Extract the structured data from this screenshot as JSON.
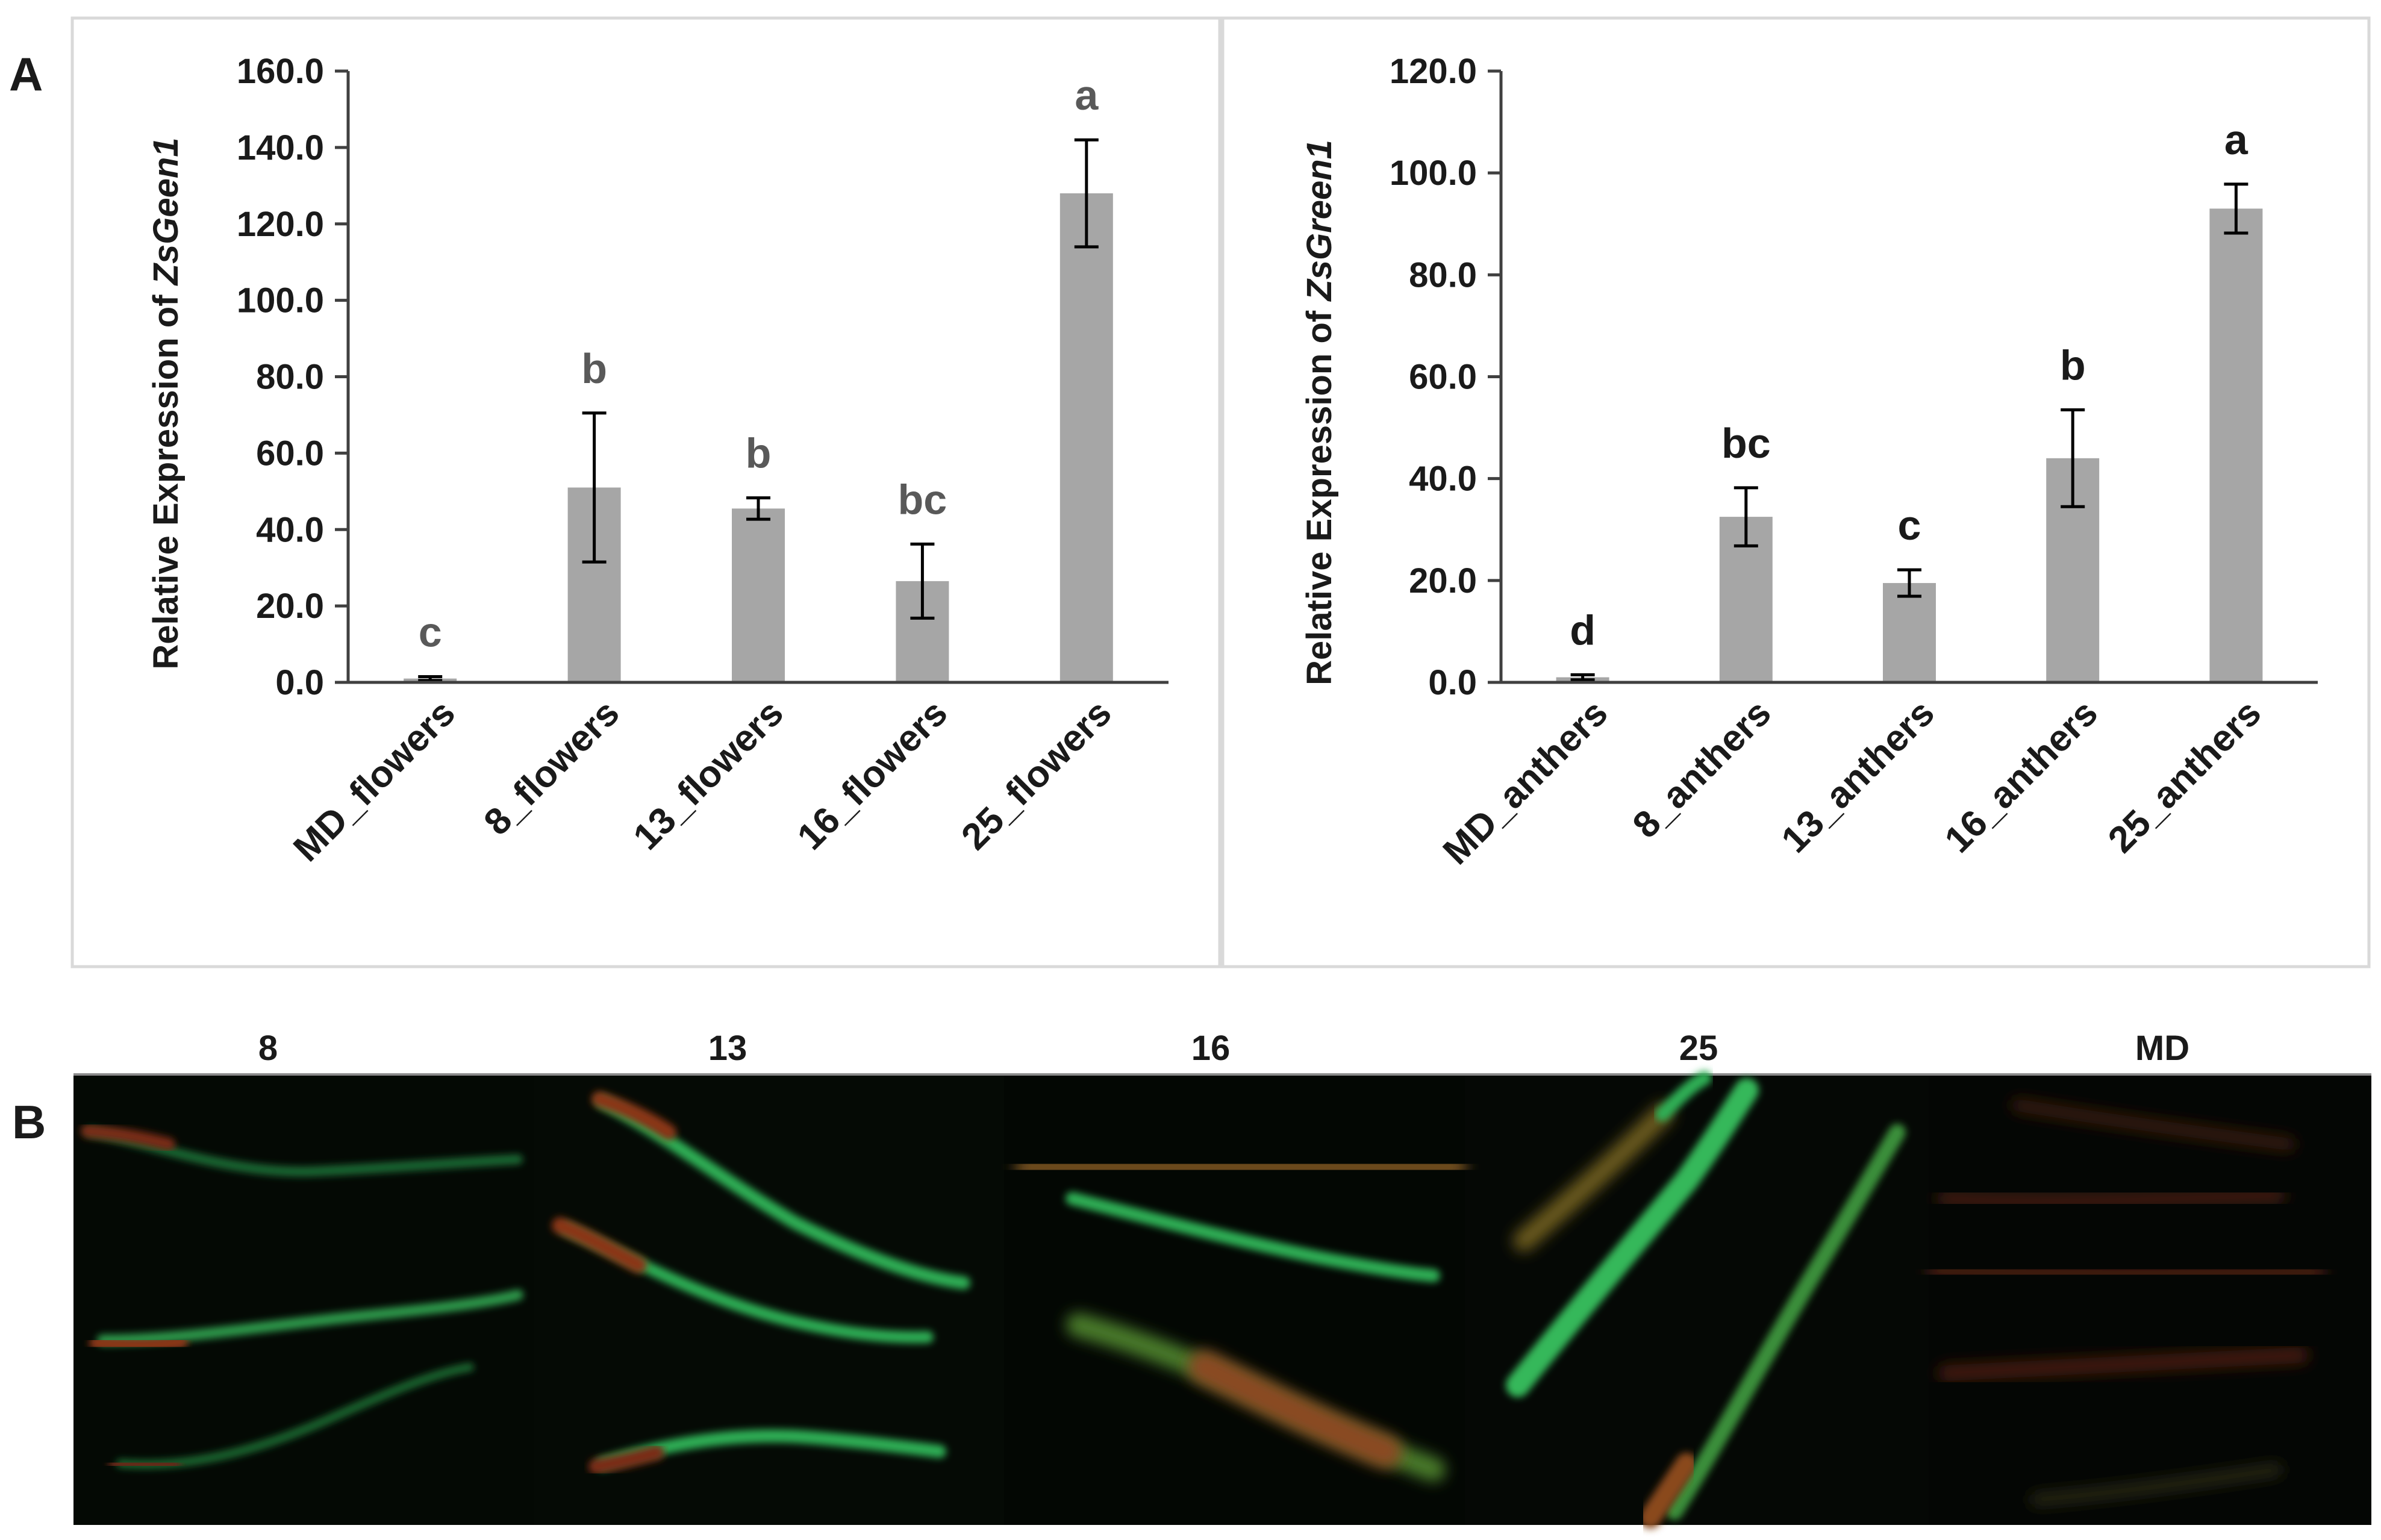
{
  "panel_labels": {
    "a": "A",
    "b": "B"
  },
  "colors": {
    "bar": "#a6a6a6",
    "error_bar": "#000000",
    "frame": "#d9d9d9",
    "sig_left": "#595959",
    "sig_right": "#1a1a1a"
  },
  "chart_data": [
    {
      "type": "bar",
      "ylabel_prefix": "Relative Expression of ",
      "ylabel_gene": "ZsGeen1",
      "ylim": [
        0,
        160
      ],
      "yticks": [
        "0.0",
        "20.0",
        "40.0",
        "60.0",
        "80.0",
        "100.0",
        "120.0",
        "140.0",
        "160.0"
      ],
      "categories": [
        "MD_flowers",
        "8_flowers",
        "13_flowers",
        "16_flowers",
        "25_flowers"
      ],
      "values": [
        1.0,
        51.0,
        45.5,
        26.5,
        128.0
      ],
      "errors": [
        0.5,
        19.5,
        2.8,
        9.7,
        14.0
      ],
      "letters": [
        "c",
        "b",
        "b",
        "bc",
        "a"
      ],
      "grid": false
    },
    {
      "type": "bar",
      "ylabel_prefix": "Relative Expression of ",
      "ylabel_gene": "ZsGreen1",
      "ylim": [
        0,
        120
      ],
      "yticks": [
        "0.0",
        "20.0",
        "40.0",
        "60.0",
        "80.0",
        "100.0",
        "120.0"
      ],
      "categories": [
        "MD_anthers",
        "8_anthers",
        "13_anthers",
        "16_anthers",
        "25_anthers"
      ],
      "values": [
        1.0,
        32.5,
        19.5,
        44.0,
        93.0
      ],
      "errors": [
        0.5,
        5.7,
        2.6,
        9.5,
        4.8
      ],
      "letters": [
        "d",
        "bc",
        "c",
        "b",
        "a"
      ],
      "grid": false
    }
  ],
  "image_strip": {
    "labels": [
      "8",
      "13",
      "16",
      "25",
      "MD"
    ]
  }
}
